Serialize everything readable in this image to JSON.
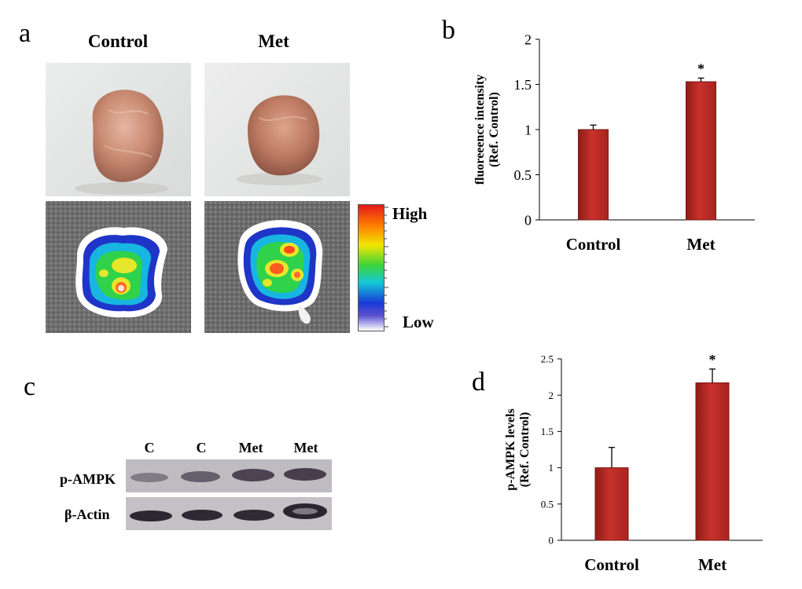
{
  "panels": {
    "a": {
      "letter": "a",
      "titles": [
        "Control",
        "Met"
      ],
      "scale": {
        "high": "High",
        "low": "Low"
      }
    },
    "b": {
      "letter": "b"
    },
    "c": {
      "letter": "c",
      "lanes": [
        "C",
        "C",
        "Met",
        "Met"
      ],
      "rows": [
        "p-AMPK",
        "β-Actin"
      ]
    },
    "d": {
      "letter": "d"
    }
  },
  "chart_data": [
    {
      "id": "b",
      "type": "bar",
      "categories": [
        "Control",
        "Met"
      ],
      "values": [
        1.0,
        1.53
      ],
      "errors": [
        0.05,
        0.04
      ],
      "annotations": [
        "",
        "*"
      ],
      "ylabel_lines": [
        "fluoreeence intensity",
        "(Ref. Control)"
      ],
      "ylim": [
        0,
        2
      ],
      "yticks": [
        0,
        0.5,
        1,
        1.5,
        2
      ],
      "ytick_labels": [
        "0",
        "0.5",
        "1",
        "1.5",
        "2"
      ],
      "bar_color": "#c8312b"
    },
    {
      "id": "d",
      "type": "bar",
      "categories": [
        "Control",
        "Met"
      ],
      "values": [
        1.0,
        2.17
      ],
      "errors": [
        0.28,
        0.19
      ],
      "annotations": [
        "",
        "*"
      ],
      "ylabel_lines": [
        "p-AMPK levels",
        "(Ref. Control)"
      ],
      "ylim": [
        0,
        2.5
      ],
      "yticks": [
        0,
        0.5,
        1,
        1.5,
        2,
        2.5
      ],
      "ytick_labels": [
        "0",
        "0.5",
        "1",
        "1.5",
        "2",
        "2.5"
      ],
      "bar_color": "#c8312b"
    }
  ]
}
